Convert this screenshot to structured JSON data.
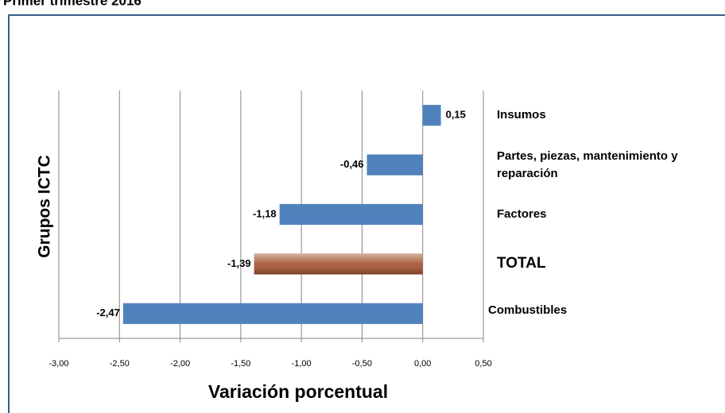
{
  "chart_data": {
    "type": "barh",
    "title": "Primer trimestre 2016",
    "x_axis_label": "Variación porcentual",
    "y_axis_label": "Grupos ICTC",
    "categories": [
      "Insumos",
      "Partes, piezas, mantenimiento y reparación",
      "Factores",
      "TOTAL",
      "Combustibles"
    ],
    "values": [
      0.15,
      -0.46,
      -1.18,
      -1.39,
      -2.47
    ],
    "value_labels": [
      "0,15",
      "-0,46",
      "-1,18",
      "-1,39",
      "-2,47"
    ],
    "colors": [
      "#4f81bd",
      "#4f81bd",
      "#4f81bd",
      "#a0522d",
      "#4f81bd"
    ],
    "xlim": [
      -3,
      0.5
    ],
    "xticks": [
      {
        "value": -3,
        "label": "-3,00"
      },
      {
        "value": -2.5,
        "label": "-2,50"
      },
      {
        "value": -2,
        "label": "-2,00"
      },
      {
        "value": -1.5,
        "label": "-1,50"
      },
      {
        "value": -1,
        "label": "-1,00"
      },
      {
        "value": -0.5,
        "label": "-0,50"
      },
      {
        "value": 0,
        "label": "0,00"
      },
      {
        "value": 0.5,
        "label": "0,50"
      }
    ],
    "grid": true
  }
}
